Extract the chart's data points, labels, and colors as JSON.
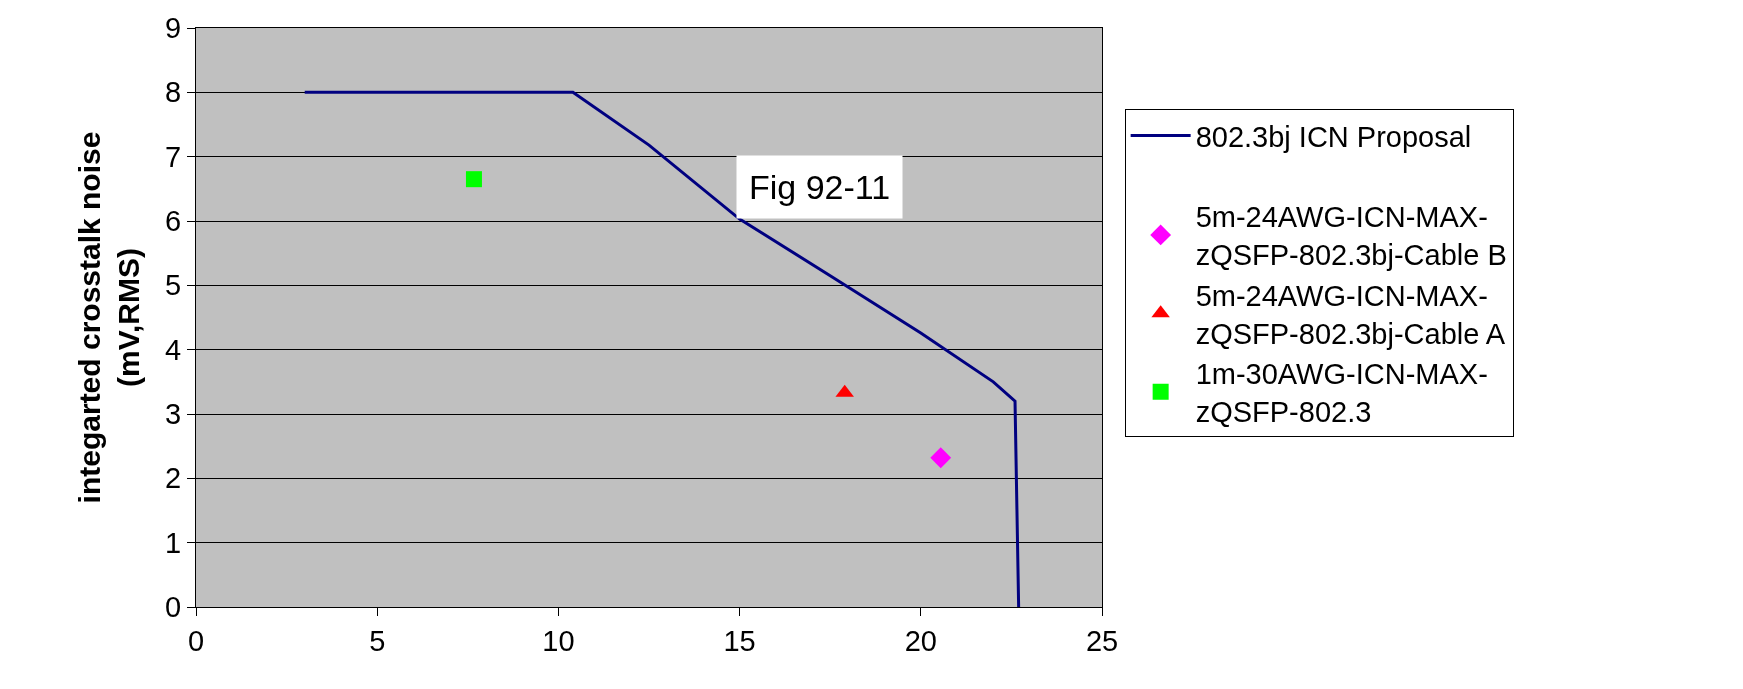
{
  "chart_data": {
    "type": "line",
    "ylabel": "integarted crosstalk noise\n(mV,RMS)",
    "annotations": [
      "Fig 92-11"
    ],
    "xlim": [
      0,
      25
    ],
    "xticks": [
      0,
      5,
      10,
      15,
      20,
      25
    ],
    "ylim": [
      0,
      9
    ],
    "yticks": [
      0,
      1,
      2,
      3,
      4,
      5,
      6,
      7,
      8,
      9
    ],
    "grid": "y",
    "legend": "right",
    "series": [
      {
        "name": "802.3bj ICN Proposal",
        "color": "#000080",
        "marker": "none",
        "line_style": "solid",
        "x": [
          3.0,
          10.4,
          12.5,
          15.0,
          17.5,
          20.0,
          22.0,
          22.6,
          22.7
        ],
        "values": [
          8.0,
          8.0,
          7.18,
          6.03,
          5.15,
          4.26,
          3.5,
          3.2,
          0.0
        ]
      },
      {
        "name": "5m-24AWG-ICN-MAX-\nzQSFP-802.3bj-Cable B",
        "type": "scatter",
        "color": "#ff00ff",
        "marker": "diamond",
        "x": [
          20.55
        ],
        "values": [
          2.32
        ]
      },
      {
        "name": "5m-24AWG-ICN-MAX-\nzQSFP-802.3bj-Cable A",
        "type": "scatter",
        "color": "#ff0000",
        "marker": "triangle",
        "x": [
          17.9
        ],
        "values": [
          3.33
        ]
      },
      {
        "name": "1m-30AWG-ICN-MAX-\nzQSFP-802.3",
        "type": "scatter",
        "color": "#00ff00",
        "marker": "square",
        "x": [
          7.67
        ],
        "values": [
          6.65
        ]
      }
    ]
  }
}
